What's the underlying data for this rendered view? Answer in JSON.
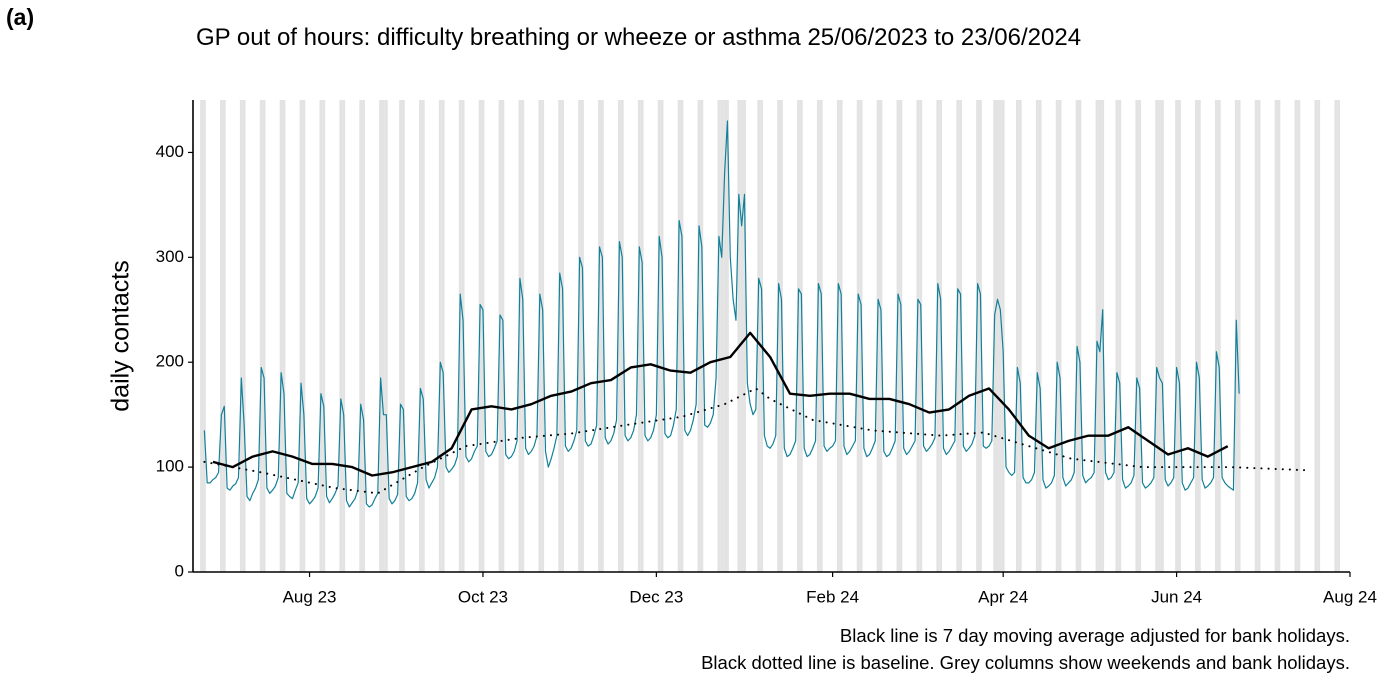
{
  "panel_label": "(a)",
  "chart_data": {
    "type": "line",
    "title": "GP out of hours: difficulty breathing or wheeze or asthma 25/06/2023 to 23/06/2024",
    "ylabel": "daily contacts",
    "notes": [
      "Black line is 7 day moving average adjusted for bank holidays.",
      "Black dotted line is baseline. Grey columns show weekends and bank holidays."
    ],
    "xlim": [
      "2023-06-21",
      "2024-08-01"
    ],
    "xticks": [
      {
        "value": "2023-08-01",
        "label": "Aug 23"
      },
      {
        "value": "2023-10-01",
        "label": "Oct 23"
      },
      {
        "value": "2023-12-01",
        "label": "Dec 23"
      },
      {
        "value": "2024-02-01",
        "label": "Feb 24"
      },
      {
        "value": "2024-04-01",
        "label": "Apr 24"
      },
      {
        "value": "2024-06-01",
        "label": "Jun 24"
      },
      {
        "value": "2024-08-01",
        "label": "Aug 24"
      }
    ],
    "ylim": [
      0,
      450
    ],
    "yticks": [
      0,
      100,
      200,
      300,
      400
    ],
    "shade_color": "#e3e3e3",
    "bank_holidays": [
      "2023-08-28",
      "2023-12-25",
      "2023-12-26",
      "2024-01-01",
      "2024-03-29",
      "2024-04-01",
      "2024-05-06",
      "2024-05-27"
    ],
    "x": [
      "2023-06-25",
      "2023-06-26",
      "2023-06-27",
      "2023-06-28",
      "2023-06-29",
      "2023-06-30",
      "2023-07-01",
      "2023-07-02",
      "2023-07-03",
      "2023-07-04",
      "2023-07-05",
      "2023-07-06",
      "2023-07-07",
      "2023-07-08",
      "2023-07-09",
      "2023-07-10",
      "2023-07-11",
      "2023-07-12",
      "2023-07-13",
      "2023-07-14",
      "2023-07-15",
      "2023-07-16",
      "2023-07-17",
      "2023-07-18",
      "2023-07-19",
      "2023-07-20",
      "2023-07-21",
      "2023-07-22",
      "2023-07-23",
      "2023-07-24",
      "2023-07-25",
      "2023-07-26",
      "2023-07-27",
      "2023-07-28",
      "2023-07-29",
      "2023-07-30",
      "2023-07-31",
      "2023-08-01",
      "2023-08-02",
      "2023-08-03",
      "2023-08-04",
      "2023-08-05",
      "2023-08-06",
      "2023-08-07",
      "2023-08-08",
      "2023-08-09",
      "2023-08-10",
      "2023-08-11",
      "2023-08-12",
      "2023-08-13",
      "2023-08-14",
      "2023-08-15",
      "2023-08-16",
      "2023-08-17",
      "2023-08-18",
      "2023-08-19",
      "2023-08-20",
      "2023-08-21",
      "2023-08-22",
      "2023-08-23",
      "2023-08-24",
      "2023-08-25",
      "2023-08-26",
      "2023-08-27",
      "2023-08-28",
      "2023-08-29",
      "2023-08-30",
      "2023-08-31",
      "2023-09-01",
      "2023-09-02",
      "2023-09-03",
      "2023-09-04",
      "2023-09-05",
      "2023-09-06",
      "2023-09-07",
      "2023-09-08",
      "2023-09-09",
      "2023-09-10",
      "2023-09-11",
      "2023-09-12",
      "2023-09-13",
      "2023-09-14",
      "2023-09-15",
      "2023-09-16",
      "2023-09-17",
      "2023-09-18",
      "2023-09-19",
      "2023-09-20",
      "2023-09-21",
      "2023-09-22",
      "2023-09-23",
      "2023-09-24",
      "2023-09-25",
      "2023-09-26",
      "2023-09-27",
      "2023-09-28",
      "2023-09-29",
      "2023-09-30",
      "2023-10-01",
      "2023-10-02",
      "2023-10-03",
      "2023-10-04",
      "2023-10-05",
      "2023-10-06",
      "2023-10-07",
      "2023-10-08",
      "2023-10-09",
      "2023-10-10",
      "2023-10-11",
      "2023-10-12",
      "2023-10-13",
      "2023-10-14",
      "2023-10-15",
      "2023-10-16",
      "2023-10-17",
      "2023-10-18",
      "2023-10-19",
      "2023-10-20",
      "2023-10-21",
      "2023-10-22",
      "2023-10-23",
      "2023-10-24",
      "2023-10-25",
      "2023-10-26",
      "2023-10-27",
      "2023-10-28",
      "2023-10-29",
      "2023-10-30",
      "2023-10-31",
      "2023-11-01",
      "2023-11-02",
      "2023-11-03",
      "2023-11-04",
      "2023-11-05",
      "2023-11-06",
      "2023-11-07",
      "2023-11-08",
      "2023-11-09",
      "2023-11-10",
      "2023-11-11",
      "2023-11-12",
      "2023-11-13",
      "2023-11-14",
      "2023-11-15",
      "2023-11-16",
      "2023-11-17",
      "2023-11-18",
      "2023-11-19",
      "2023-11-20",
      "2023-11-21",
      "2023-11-22",
      "2023-11-23",
      "2023-11-24",
      "2023-11-25",
      "2023-11-26",
      "2023-11-27",
      "2023-11-28",
      "2023-11-29",
      "2023-11-30",
      "2023-12-01",
      "2023-12-02",
      "2023-12-03",
      "2023-12-04",
      "2023-12-05",
      "2023-12-06",
      "2023-12-07",
      "2023-12-08",
      "2023-12-09",
      "2023-12-10",
      "2023-12-11",
      "2023-12-12",
      "2023-12-13",
      "2023-12-14",
      "2023-12-15",
      "2023-12-16",
      "2023-12-17",
      "2023-12-18",
      "2023-12-19",
      "2023-12-20",
      "2023-12-21",
      "2023-12-22",
      "2023-12-23",
      "2023-12-24",
      "2023-12-25",
      "2023-12-26",
      "2023-12-27",
      "2023-12-28",
      "2023-12-29",
      "2023-12-30",
      "2023-12-31",
      "2024-01-01",
      "2024-01-02",
      "2024-01-03",
      "2024-01-04",
      "2024-01-05",
      "2024-01-06",
      "2024-01-07",
      "2024-01-08",
      "2024-01-09",
      "2024-01-10",
      "2024-01-11",
      "2024-01-12",
      "2024-01-13",
      "2024-01-14",
      "2024-01-15",
      "2024-01-16",
      "2024-01-17",
      "2024-01-18",
      "2024-01-19",
      "2024-01-20",
      "2024-01-21",
      "2024-01-22",
      "2024-01-23",
      "2024-01-24",
      "2024-01-25",
      "2024-01-26",
      "2024-01-27",
      "2024-01-28",
      "2024-01-29",
      "2024-01-30",
      "2024-01-31",
      "2024-02-01",
      "2024-02-02",
      "2024-02-03",
      "2024-02-04",
      "2024-02-05",
      "2024-02-06",
      "2024-02-07",
      "2024-02-08",
      "2024-02-09",
      "2024-02-10",
      "2024-02-11",
      "2024-02-12",
      "2024-02-13",
      "2024-02-14",
      "2024-02-15",
      "2024-02-16",
      "2024-02-17",
      "2024-02-18",
      "2024-02-19",
      "2024-02-20",
      "2024-02-21",
      "2024-02-22",
      "2024-02-23",
      "2024-02-24",
      "2024-02-25",
      "2024-02-26",
      "2024-02-27",
      "2024-02-28",
      "2024-02-29",
      "2024-03-01",
      "2024-03-02",
      "2024-03-03",
      "2024-03-04",
      "2024-03-05",
      "2024-03-06",
      "2024-03-07",
      "2024-03-08",
      "2024-03-09",
      "2024-03-10",
      "2024-03-11",
      "2024-03-12",
      "2024-03-13",
      "2024-03-14",
      "2024-03-15",
      "2024-03-16",
      "2024-03-17",
      "2024-03-18",
      "2024-03-19",
      "2024-03-20",
      "2024-03-21",
      "2024-03-22",
      "2024-03-23",
      "2024-03-24",
      "2024-03-25",
      "2024-03-26",
      "2024-03-27",
      "2024-03-28",
      "2024-03-29",
      "2024-03-30",
      "2024-03-31",
      "2024-04-01",
      "2024-04-02",
      "2024-04-03",
      "2024-04-04",
      "2024-04-05",
      "2024-04-06",
      "2024-04-07",
      "2024-04-08",
      "2024-04-09",
      "2024-04-10",
      "2024-04-11",
      "2024-04-12",
      "2024-04-13",
      "2024-04-14",
      "2024-04-15",
      "2024-04-16",
      "2024-04-17",
      "2024-04-18",
      "2024-04-19",
      "2024-04-20",
      "2024-04-21",
      "2024-04-22",
      "2024-04-23",
      "2024-04-24",
      "2024-04-25",
      "2024-04-26",
      "2024-04-27",
      "2024-04-28",
      "2024-04-29",
      "2024-04-30",
      "2024-05-01",
      "2024-05-02",
      "2024-05-03",
      "2024-05-04",
      "2024-05-05",
      "2024-05-06",
      "2024-05-07",
      "2024-05-08",
      "2024-05-09",
      "2024-05-10",
      "2024-05-11",
      "2024-05-12",
      "2024-05-13",
      "2024-05-14",
      "2024-05-15",
      "2024-05-16",
      "2024-05-17",
      "2024-05-18",
      "2024-05-19",
      "2024-05-20",
      "2024-05-21",
      "2024-05-22",
      "2024-05-23",
      "2024-05-24",
      "2024-05-25",
      "2024-05-26",
      "2024-05-27",
      "2024-05-28",
      "2024-05-29",
      "2024-05-30",
      "2024-05-31",
      "2024-06-01",
      "2024-06-02",
      "2024-06-03",
      "2024-06-04",
      "2024-06-05",
      "2024-06-06",
      "2024-06-07",
      "2024-06-08",
      "2024-06-09",
      "2024-06-10",
      "2024-06-11",
      "2024-06-12",
      "2024-06-13",
      "2024-06-14",
      "2024-06-15",
      "2024-06-16",
      "2024-06-17",
      "2024-06-18",
      "2024-06-19",
      "2024-06-20",
      "2024-06-21",
      "2024-06-22",
      "2024-06-23"
    ],
    "series": [
      {
        "name": "daily contacts",
        "color": "#13809a",
        "width": 1.2,
        "style": "solid",
        "values": [
          135,
          85,
          85,
          88,
          90,
          95,
          150,
          158,
          80,
          78,
          82,
          84,
          90,
          185,
          140,
          72,
          68,
          75,
          80,
          88,
          195,
          185,
          80,
          75,
          78,
          82,
          90,
          190,
          170,
          75,
          72,
          70,
          78,
          85,
          180,
          150,
          70,
          65,
          68,
          72,
          80,
          170,
          158,
          72,
          66,
          70,
          75,
          82,
          165,
          150,
          68,
          62,
          66,
          70,
          78,
          160,
          145,
          65,
          62,
          64,
          70,
          75,
          185,
          150,
          150,
          70,
          65,
          68,
          74,
          160,
          155,
          72,
          68,
          70,
          75,
          85,
          175,
          165,
          88,
          80,
          85,
          90,
          100,
          200,
          190,
          100,
          95,
          98,
          102,
          110,
          265,
          240,
          110,
          105,
          108,
          115,
          120,
          255,
          250,
          115,
          110,
          112,
          118,
          125,
          245,
          240,
          112,
          108,
          110,
          115,
          125,
          280,
          260,
          118,
          112,
          115,
          120,
          130,
          265,
          250,
          115,
          100,
          108,
          118,
          130,
          285,
          270,
          120,
          115,
          118,
          125,
          135,
          300,
          290,
          125,
          120,
          122,
          130,
          140,
          310,
          300,
          128,
          122,
          125,
          132,
          145,
          315,
          300,
          130,
          125,
          128,
          135,
          150,
          310,
          295,
          130,
          125,
          128,
          135,
          150,
          320,
          300,
          132,
          128,
          130,
          140,
          155,
          335,
          320,
          135,
          130,
          135,
          145,
          160,
          330,
          310,
          140,
          138,
          142,
          150,
          185,
          320,
          300,
          380,
          430,
          300,
          260,
          240,
          360,
          330,
          360,
          180,
          160,
          150,
          155,
          280,
          270,
          130,
          120,
          118,
          122,
          130,
          275,
          260,
          118,
          110,
          112,
          118,
          125,
          270,
          265,
          118,
          110,
          112,
          118,
          125,
          275,
          265,
          120,
          115,
          118,
          120,
          125,
          275,
          265,
          120,
          112,
          115,
          120,
          125,
          265,
          255,
          118,
          110,
          112,
          118,
          125,
          260,
          250,
          115,
          110,
          112,
          118,
          125,
          265,
          255,
          118,
          112,
          115,
          120,
          125,
          260,
          255,
          120,
          115,
          118,
          122,
          128,
          275,
          260,
          118,
          112,
          115,
          120,
          125,
          270,
          265,
          120,
          115,
          118,
          122,
          130,
          275,
          265,
          120,
          118,
          120,
          125,
          245,
          260,
          250,
          210,
          100,
          95,
          92,
          95,
          195,
          180,
          90,
          85,
          85,
          88,
          95,
          190,
          175,
          88,
          80,
          82,
          85,
          92,
          200,
          185,
          90,
          82,
          85,
          88,
          95,
          215,
          200,
          92,
          85,
          88,
          90,
          95,
          220,
          210,
          250,
          95,
          88,
          90,
          95,
          190,
          180,
          88,
          80,
          82,
          85,
          92,
          185,
          175,
          85,
          80,
          82,
          85,
          90,
          195,
          185,
          180,
          88,
          82,
          85,
          90,
          195,
          180,
          85,
          78,
          80,
          85,
          90,
          200,
          185,
          88,
          80,
          82,
          85,
          90,
          210,
          195,
          90,
          85,
          82,
          80,
          78,
          240,
          170
        ]
      },
      {
        "name": "7 day moving average",
        "color": "#000000",
        "width": 2.4,
        "style": "solid",
        "x": [
          "2023-06-28",
          "2023-07-05",
          "2023-07-12",
          "2023-07-19",
          "2023-07-26",
          "2023-08-02",
          "2023-08-09",
          "2023-08-16",
          "2023-08-23",
          "2023-08-30",
          "2023-09-06",
          "2023-09-13",
          "2023-09-20",
          "2023-09-27",
          "2023-10-04",
          "2023-10-11",
          "2023-10-18",
          "2023-10-25",
          "2023-11-01",
          "2023-11-08",
          "2023-11-15",
          "2023-11-22",
          "2023-11-29",
          "2023-12-06",
          "2023-12-13",
          "2023-12-20",
          "2023-12-27",
          "2024-01-03",
          "2024-01-10",
          "2024-01-17",
          "2024-01-24",
          "2024-01-31",
          "2024-02-07",
          "2024-02-14",
          "2024-02-21",
          "2024-02-28",
          "2024-03-06",
          "2024-03-13",
          "2024-03-20",
          "2024-03-27",
          "2024-04-03",
          "2024-04-10",
          "2024-04-17",
          "2024-04-24",
          "2024-05-01",
          "2024-05-08",
          "2024-05-15",
          "2024-05-22",
          "2024-05-29",
          "2024-06-05",
          "2024-06-12",
          "2024-06-19"
        ],
        "values": [
          105,
          100,
          110,
          115,
          110,
          103,
          103,
          100,
          92,
          95,
          100,
          105,
          118,
          155,
          158,
          155,
          160,
          168,
          172,
          180,
          183,
          195,
          198,
          192,
          190,
          200,
          205,
          228,
          205,
          170,
          168,
          170,
          170,
          165,
          165,
          160,
          152,
          155,
          168,
          175,
          155,
          130,
          118,
          125,
          130,
          130,
          138,
          125,
          112,
          118,
          110,
          120
        ]
      },
      {
        "name": "baseline",
        "color": "#000000",
        "width": 2,
        "style": "dotted",
        "x": [
          "2023-06-25",
          "2023-07-15",
          "2023-08-10",
          "2023-08-25",
          "2023-09-10",
          "2023-09-25",
          "2023-10-15",
          "2023-11-01",
          "2023-11-20",
          "2023-12-10",
          "2023-12-25",
          "2024-01-05",
          "2024-01-10",
          "2024-01-25",
          "2024-02-15",
          "2024-03-10",
          "2024-03-25",
          "2024-04-10",
          "2024-04-25",
          "2024-05-20",
          "2024-06-20",
          "2024-07-17"
        ],
        "values": [
          105,
          95,
          80,
          75,
          100,
          120,
          128,
          132,
          140,
          148,
          160,
          175,
          165,
          145,
          135,
          130,
          133,
          120,
          108,
          100,
          100,
          97
        ]
      }
    ]
  }
}
